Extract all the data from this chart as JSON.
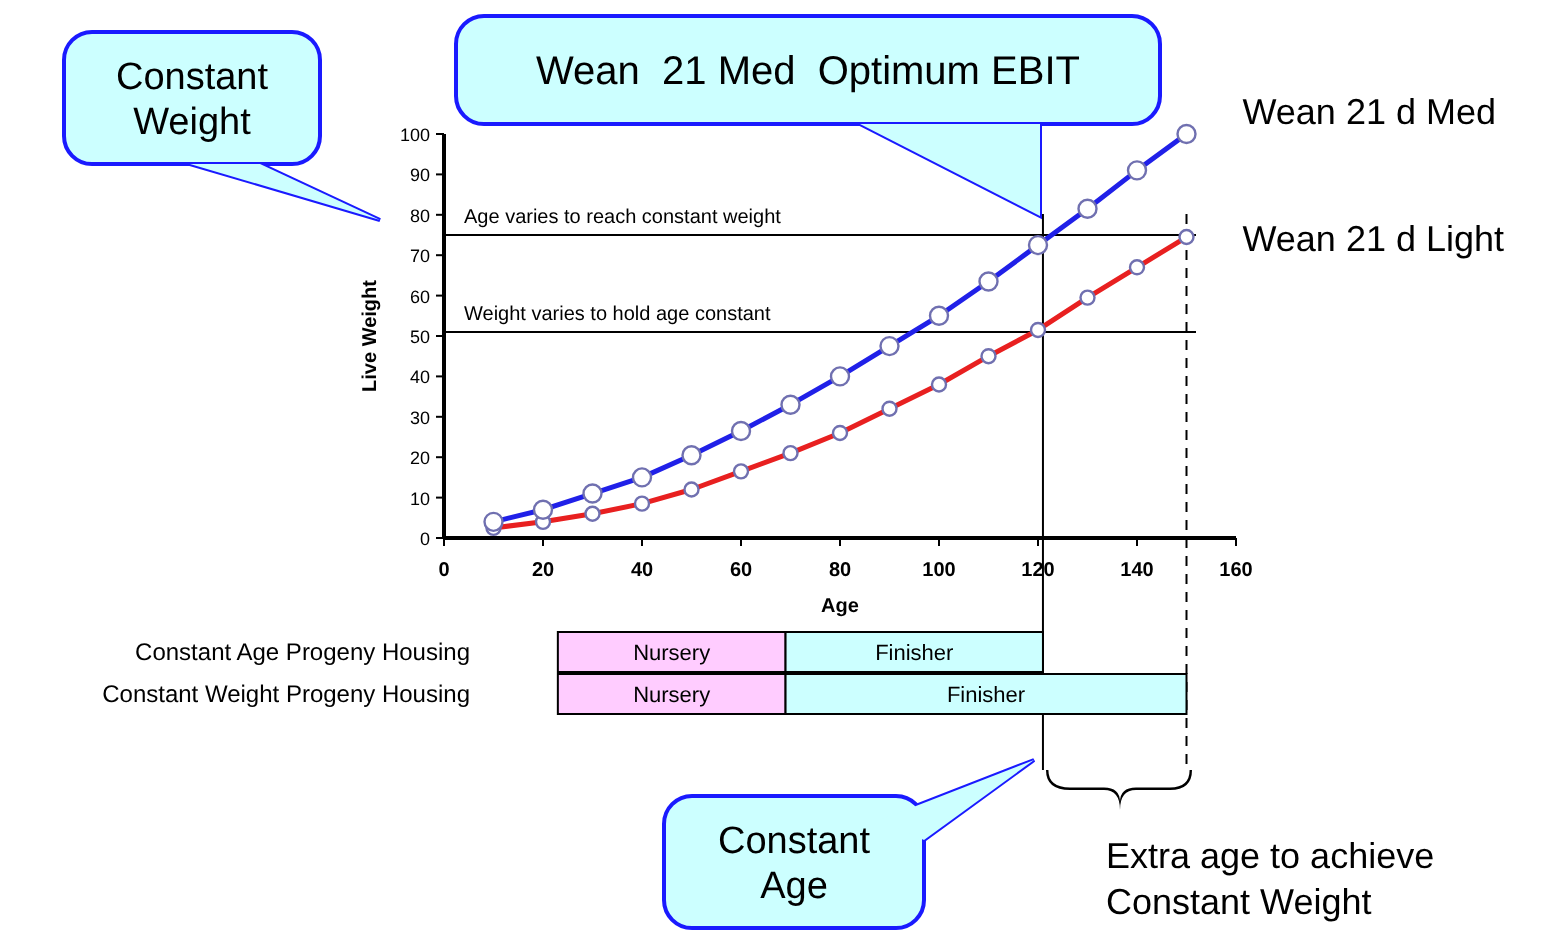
{
  "chart_data": [
    {
      "type": "line",
      "xlabel": "Age",
      "ylabel": "Live Weight",
      "x": [
        10,
        20,
        30,
        40,
        50,
        60,
        70,
        80,
        90,
        100,
        110,
        120,
        130,
        140,
        150
      ],
      "series": [
        {
          "name": "Wean 21 d Med",
          "color": "#2020e8",
          "values": [
            4,
            7,
            11,
            15,
            20.5,
            26.5,
            33,
            40,
            47.5,
            55,
            63.5,
            72.5,
            81.5,
            91,
            100
          ]
        },
        {
          "name": "Wean 21 d Light",
          "color": "#e82020",
          "values": [
            2.5,
            4,
            6,
            8.5,
            12,
            16.5,
            21,
            26,
            32,
            38,
            45,
            51.5,
            59.5,
            67,
            74.5
          ]
        }
      ],
      "xlim": [
        0,
        160
      ],
      "xticks": [
        0,
        20,
        40,
        60,
        80,
        100,
        120,
        140,
        160
      ],
      "ylim": [
        0,
        100
      ],
      "yticks": [
        0,
        10,
        20,
        30,
        40,
        50,
        60,
        70,
        80,
        90,
        100
      ],
      "marker": "circle",
      "legend": false,
      "grid": false,
      "ref_lines": [
        {
          "axis": "y",
          "value": 75,
          "label": "Age varies to reach constant weight"
        },
        {
          "axis": "y",
          "value": 51,
          "label": "Weight varies to hold age constant"
        },
        {
          "axis": "x",
          "value": 121,
          "label": null
        },
        {
          "axis": "x",
          "value": 150,
          "label": null,
          "line_style": "dashed"
        }
      ],
      "annotations": [
        "Constant Weight",
        "Wean  21 Med  Optimum EBIT",
        "Constant Age",
        "Extra age to achieve Constant Weight"
      ]
    },
    {
      "type": "bar",
      "orientation": "horizontal",
      "categories": [
        "Constant Age Progeny Housing",
        "Constant Weight Progeny Housing"
      ],
      "series": [
        {
          "name": "Nursery",
          "color": "#ffccff",
          "base": [
            23,
            23
          ],
          "values": [
            46,
            46
          ]
        },
        {
          "name": "Finisher",
          "color": "#ccffff",
          "base": [
            69,
            69
          ],
          "values": [
            52,
            81
          ]
        }
      ],
      "xlim": [
        0,
        160
      ],
      "tick_labels": false,
      "legend": false
    }
  ]
}
